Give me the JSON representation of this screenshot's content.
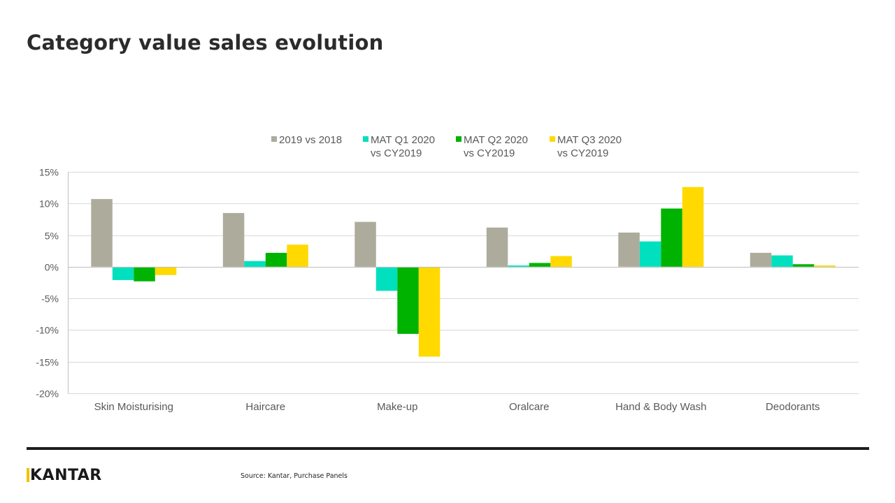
{
  "page": {
    "title": "Category value sales evolution"
  },
  "footer": {
    "brand": "KANTAR",
    "source": "Source: Kantar, Purchase Panels"
  },
  "chart_data": {
    "type": "bar",
    "title": "",
    "xlabel": "",
    "ylabel": "",
    "ylim": [
      -20,
      15
    ],
    "ytick_labels": [
      "15%",
      "10%",
      "5%",
      "0%",
      "-5%",
      "-10%",
      "-15%",
      "-20%"
    ],
    "yticks": [
      15,
      10,
      5,
      0,
      -5,
      -10,
      -15,
      -20
    ],
    "grid": true,
    "legend_position": "top",
    "categories": [
      "Skin Moisturising",
      "Haircare",
      "Make-up",
      "Oralcare",
      "Hand & Body Wash",
      "Deodorants"
    ],
    "series": [
      {
        "name": "2019 vs 2018",
        "legend_lines": [
          "2019 vs 2018"
        ],
        "color": "#adac9c",
        "values": [
          10.7,
          8.5,
          7.1,
          6.2,
          5.4,
          2.2
        ]
      },
      {
        "name": "MAT Q1 2020 vs CY2019",
        "legend_lines": [
          "MAT Q1 2020",
          "vs CY2019"
        ],
        "color": "#00e0bf",
        "values": [
          -2.1,
          0.9,
          -3.8,
          0.2,
          4.0,
          1.8
        ]
      },
      {
        "name": "MAT Q2 2020 vs CY2019",
        "legend_lines": [
          "MAT Q2 2020",
          "vs CY2019"
        ],
        "color": "#00b300",
        "values": [
          -2.3,
          2.2,
          -10.6,
          0.6,
          9.2,
          0.4
        ]
      },
      {
        "name": "MAT Q3 2020 vs CY2019",
        "legend_lines": [
          "MAT Q3 2020",
          "vs CY2019"
        ],
        "color": "#ffd900",
        "values": [
          -1.3,
          3.5,
          -14.2,
          1.7,
          12.6,
          0.2
        ]
      }
    ]
  }
}
